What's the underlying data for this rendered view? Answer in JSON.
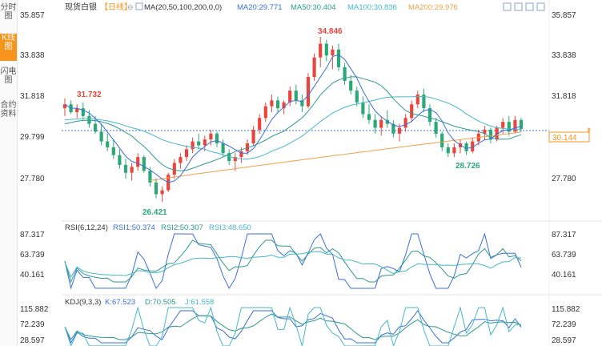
{
  "sidebar": {
    "tabs": [
      {
        "label": "分时图",
        "active": false
      },
      {
        "label": "K线图",
        "active": true
      },
      {
        "label": "闪电图",
        "active": false
      },
      {
        "label": "合约资料",
        "active": false
      }
    ]
  },
  "header": {
    "title": "现货白银",
    "period": "【日线】",
    "ma_label": "MA(20,50,100,200,0,0)",
    "ma20": "MA20:29.771",
    "ma50": "MA50:30.404",
    "ma100": "MA100:30.836",
    "ma200": "MA200:29.976"
  },
  "colors": {
    "up": "#e8463c",
    "down": "#2aa876",
    "ma20": "#3a6fd8",
    "ma50": "#2e9a8a",
    "ma100": "#47b7c9",
    "ma200": "#f0a04b",
    "accent": "#f7941d"
  },
  "price_axis": {
    "ticks": [
      "35.857",
      "33.838",
      "31.818",
      "29.799",
      "27.780"
    ],
    "current": "30.144",
    "high_label": "34.846",
    "low_label": "26.421",
    "left_label": "31.732",
    "mid_low_label": "28.726"
  },
  "rsi": {
    "title": "RSI(6,12,24)",
    "rsi1": "RSI1:50.374",
    "rsi2": "RSI2:50.307",
    "rsi3": "RSI3:48.650",
    "ticks": [
      "87.317",
      "63.739",
      "40.161"
    ]
  },
  "kdj": {
    "title": "KDJ(9,3,3)",
    "k": "K:67.523",
    "d": "D:70.505",
    "j": "J:61.558",
    "ticks": [
      "115.882",
      "72.239",
      "28.597"
    ]
  },
  "chart_data": {
    "type": "candlestick",
    "ylim": [
      26.0,
      36.0
    ],
    "candles": [
      [
        31.2,
        31.7,
        30.8,
        31.4
      ],
      [
        31.4,
        31.6,
        30.9,
        31.0
      ],
      [
        31.0,
        31.4,
        30.7,
        31.2
      ],
      [
        31.2,
        31.5,
        30.6,
        30.8
      ],
      [
        30.8,
        31.1,
        30.2,
        30.4
      ],
      [
        30.4,
        30.8,
        29.9,
        30.0
      ],
      [
        30.0,
        30.4,
        29.3,
        29.5
      ],
      [
        29.5,
        29.9,
        29.0,
        29.2
      ],
      [
        29.2,
        29.6,
        28.6,
        28.8
      ],
      [
        28.8,
        29.1,
        28.1,
        28.3
      ],
      [
        28.3,
        28.6,
        27.6,
        27.9
      ],
      [
        27.9,
        28.4,
        27.5,
        28.2
      ],
      [
        28.2,
        28.9,
        28.0,
        28.7
      ],
      [
        28.7,
        28.8,
        27.9,
        28.0
      ],
      [
        28.0,
        28.2,
        27.2,
        27.4
      ],
      [
        27.4,
        27.6,
        26.6,
        26.8
      ],
      [
        26.8,
        27.2,
        26.4,
        27.0
      ],
      [
        27.0,
        27.9,
        26.9,
        27.8
      ],
      [
        27.8,
        28.6,
        27.6,
        28.4
      ],
      [
        28.4,
        28.9,
        28.1,
        28.7
      ],
      [
        28.7,
        29.3,
        28.5,
        29.1
      ],
      [
        29.1,
        29.7,
        28.9,
        29.5
      ],
      [
        29.5,
        29.9,
        29.1,
        29.3
      ],
      [
        29.3,
        29.8,
        29.0,
        29.6
      ],
      [
        29.6,
        30.1,
        29.3,
        29.9
      ],
      [
        29.9,
        30.0,
        29.2,
        29.4
      ],
      [
        29.4,
        29.6,
        28.7,
        28.9
      ],
      [
        28.9,
        29.1,
        28.3,
        28.5
      ],
      [
        28.5,
        28.9,
        28.0,
        28.7
      ],
      [
        28.7,
        29.2,
        28.4,
        29.0
      ],
      [
        29.0,
        29.6,
        28.8,
        29.4
      ],
      [
        29.4,
        30.3,
        29.3,
        30.1
      ],
      [
        30.1,
        30.9,
        29.9,
        30.7
      ],
      [
        30.7,
        31.5,
        30.5,
        31.3
      ],
      [
        31.3,
        31.9,
        31.0,
        31.6
      ],
      [
        31.6,
        31.8,
        31.0,
        31.2
      ],
      [
        31.2,
        31.6,
        30.9,
        31.5
      ],
      [
        31.5,
        32.3,
        31.3,
        32.1
      ],
      [
        32.1,
        32.4,
        31.4,
        31.6
      ],
      [
        31.6,
        31.9,
        31.0,
        31.3
      ],
      [
        31.3,
        33.0,
        31.2,
        32.8
      ],
      [
        32.8,
        34.0,
        32.6,
        33.8
      ],
      [
        33.8,
        34.85,
        33.3,
        34.5
      ],
      [
        34.5,
        34.7,
        33.6,
        33.9
      ],
      [
        33.9,
        34.4,
        33.2,
        34.2
      ],
      [
        34.2,
        34.5,
        33.1,
        33.3
      ],
      [
        33.3,
        33.5,
        32.4,
        32.6
      ],
      [
        32.6,
        32.9,
        31.9,
        32.1
      ],
      [
        32.1,
        32.3,
        31.3,
        31.5
      ],
      [
        31.5,
        31.8,
        30.7,
        30.9
      ],
      [
        30.9,
        31.4,
        30.4,
        30.6
      ],
      [
        30.6,
        30.9,
        29.9,
        30.2
      ],
      [
        30.2,
        30.8,
        29.8,
        30.6
      ],
      [
        30.6,
        31.1,
        30.2,
        30.4
      ],
      [
        30.4,
        30.6,
        29.7,
        29.9
      ],
      [
        29.9,
        30.4,
        29.5,
        30.2
      ],
      [
        30.2,
        30.9,
        30.0,
        30.7
      ],
      [
        30.7,
        31.6,
        30.5,
        31.4
      ],
      [
        31.4,
        32.1,
        31.2,
        31.9
      ],
      [
        31.9,
        32.2,
        31.0,
        31.2
      ],
      [
        31.2,
        31.4,
        30.3,
        30.5
      ],
      [
        30.5,
        30.7,
        29.7,
        29.9
      ],
      [
        29.9,
        30.0,
        29.0,
        29.2
      ],
      [
        29.2,
        29.4,
        28.7,
        28.9
      ],
      [
        28.9,
        29.4,
        28.7,
        29.2
      ],
      [
        29.2,
        29.6,
        28.9,
        29.4
      ],
      [
        29.4,
        29.5,
        28.8,
        29.0
      ],
      [
        29.0,
        29.7,
        28.9,
        29.5
      ],
      [
        29.5,
        30.1,
        29.3,
        29.9
      ],
      [
        29.9,
        30.3,
        29.6,
        30.1
      ],
      [
        30.1,
        30.2,
        29.4,
        29.6
      ],
      [
        29.6,
        30.3,
        29.5,
        30.2
      ],
      [
        30.2,
        30.7,
        29.9,
        30.5
      ],
      [
        30.5,
        30.8,
        29.8,
        30.0
      ],
      [
        30.0,
        30.8,
        29.9,
        30.6
      ],
      [
        30.6,
        30.7,
        30.0,
        30.14
      ]
    ]
  }
}
